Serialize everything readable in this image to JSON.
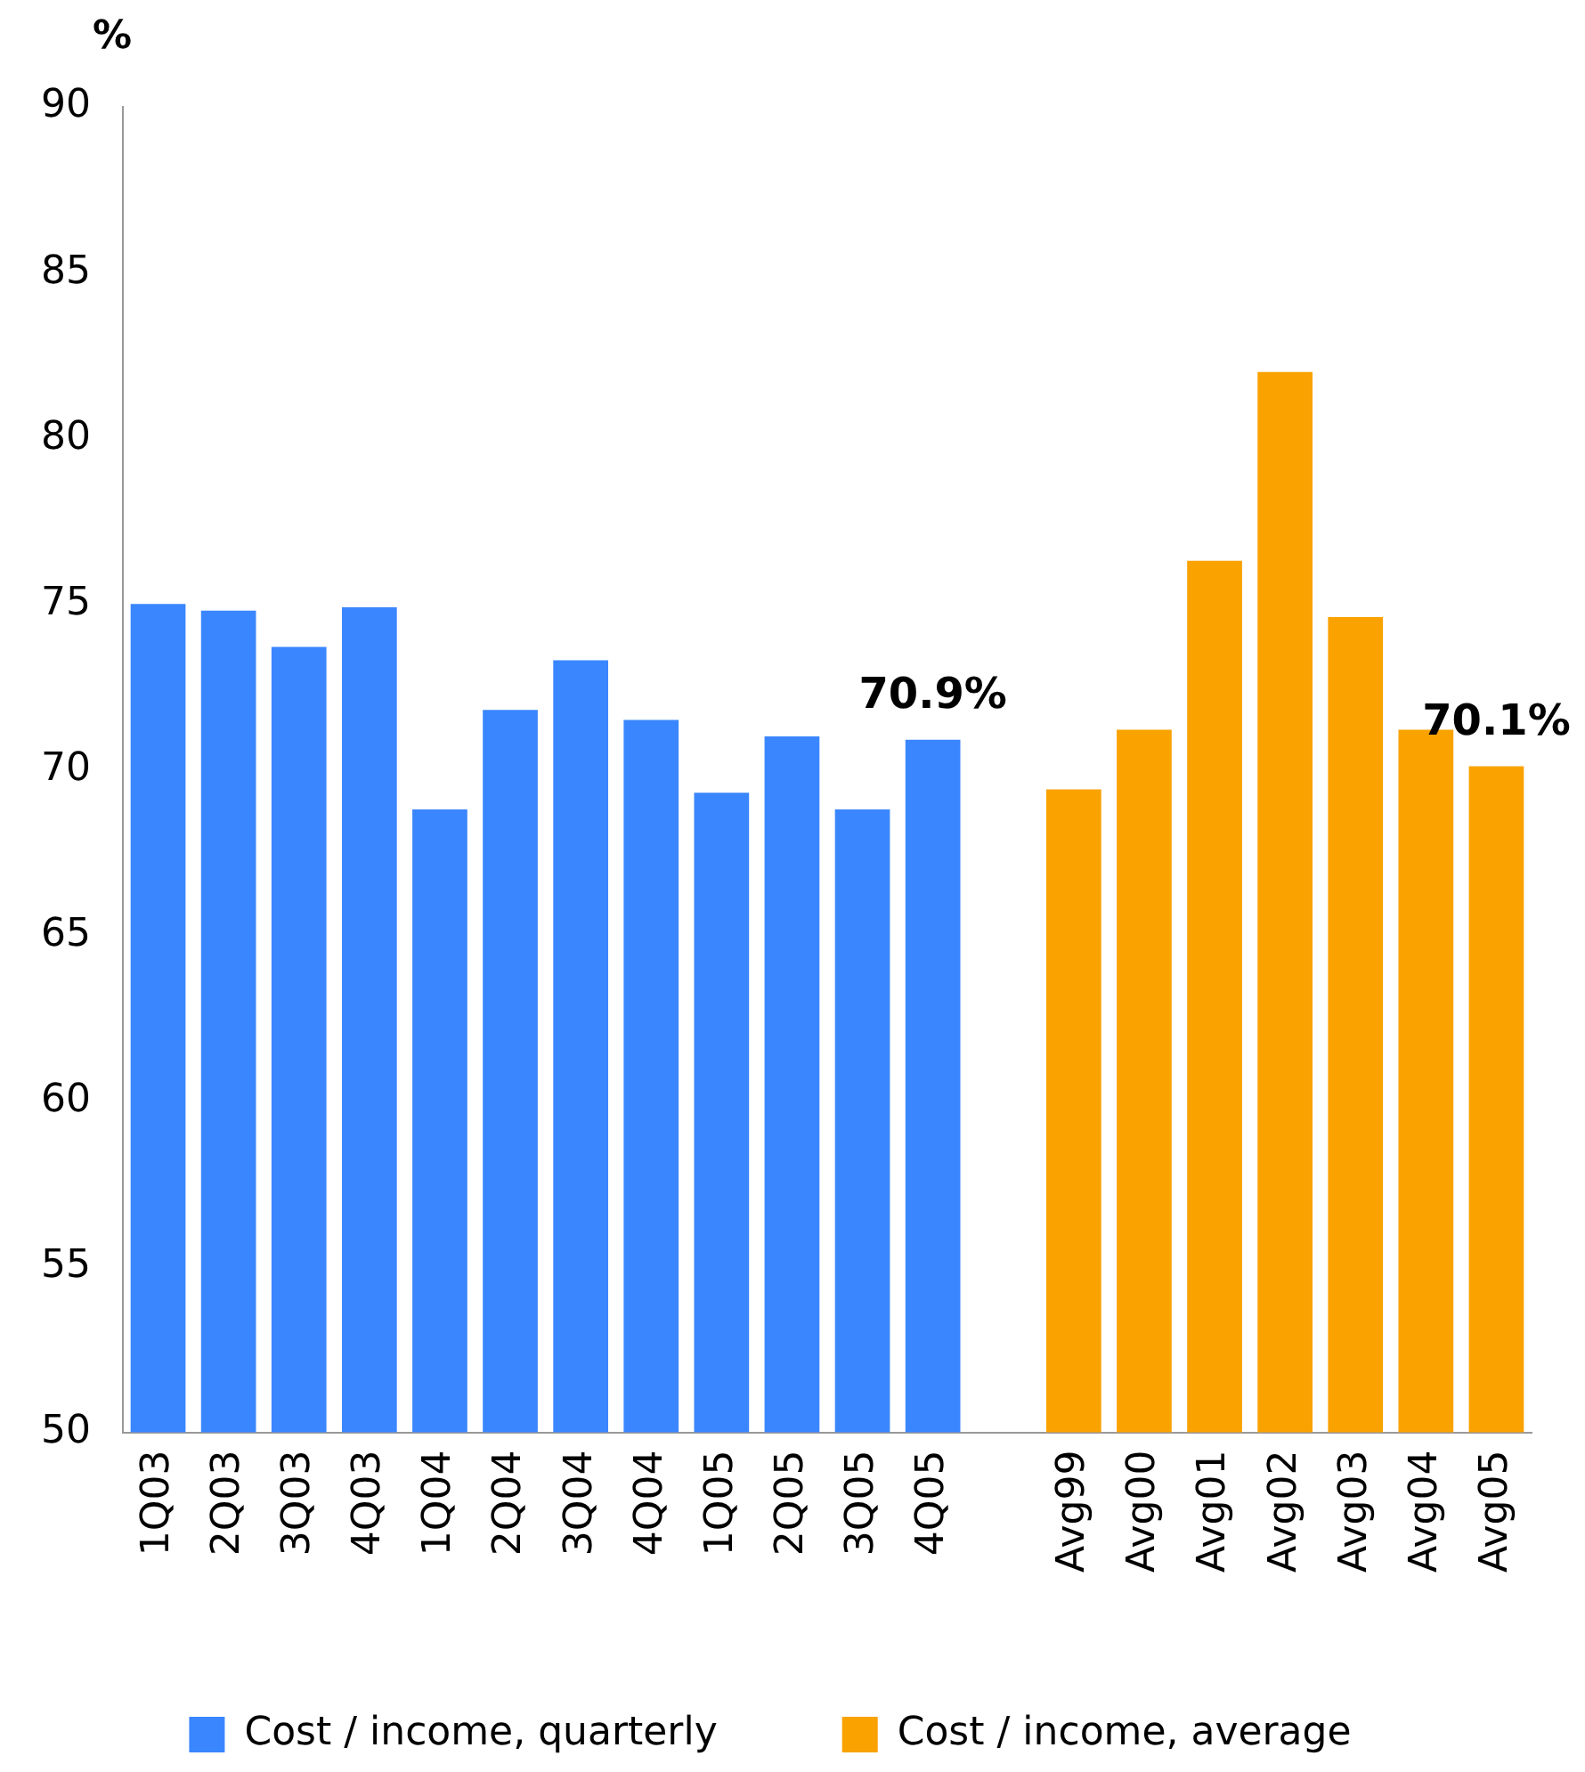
{
  "chart_data": {
    "type": "bar",
    "ylabel": "%",
    "categories": [
      "1Q03",
      "2Q03",
      "3Q03",
      "4Q03",
      "1Q04",
      "2Q04",
      "3Q04",
      "4Q04",
      "1Q05",
      "2Q05",
      "3Q05",
      "4Q05",
      null,
      "Avg99",
      "Avg00",
      "Avg01",
      "Avg02",
      "Avg03",
      "Avg04",
      "Avg05"
    ],
    "series": [
      {
        "name": "Cost / income, quarterly",
        "color": "#3a86ff",
        "values": [
          75.0,
          74.8,
          73.7,
          74.9,
          68.8,
          71.8,
          73.3,
          71.5,
          69.3,
          71.0,
          68.8,
          70.9,
          null,
          null,
          null,
          null,
          null,
          null,
          null,
          null
        ]
      },
      {
        "name": "Cost / income, average",
        "color": "#f9a200",
        "values": [
          null,
          null,
          null,
          null,
          null,
          null,
          null,
          null,
          null,
          null,
          null,
          null,
          null,
          69.4,
          71.2,
          76.3,
          82.0,
          74.6,
          71.2,
          70.1
        ]
      }
    ],
    "ylim": [
      50,
      90
    ],
    "yticks": [
      50,
      55,
      60,
      65,
      70,
      75,
      80,
      85,
      90
    ],
    "grid": false,
    "legend": "bottom",
    "annotations": [
      {
        "text": "70.9%",
        "x": "4Q05",
        "y": 70.9
      },
      {
        "text": "70.1%",
        "x": "Avg05",
        "y": 70.1
      }
    ]
  }
}
